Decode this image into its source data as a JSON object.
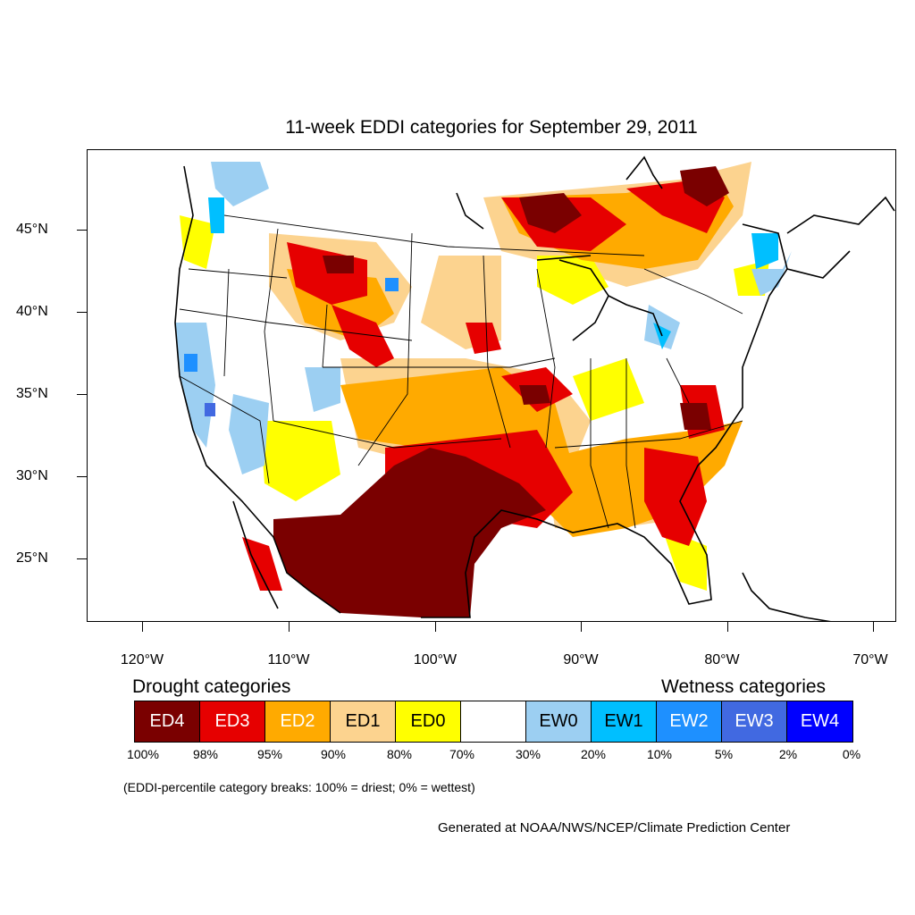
{
  "title": "11-week EDDI categories for September 29, 2011",
  "lat_labels": [
    "45°N",
    "40°N",
    "35°N",
    "30°N",
    "25°N"
  ],
  "lon_labels": [
    "120°W",
    "110°W",
    "100°W",
    "90°W",
    "80°W",
    "70°W"
  ],
  "legend": {
    "drought_heading": "Drought categories",
    "wetness_heading": "Wetness categories",
    "categories": [
      {
        "label": "ED4",
        "color": "#7a0000",
        "text_color": "#ffffff"
      },
      {
        "label": "ED3",
        "color": "#e60000",
        "text_color": "#ffffff"
      },
      {
        "label": "ED2",
        "color": "#ffaa00",
        "text_color": "#ffffff"
      },
      {
        "label": "ED1",
        "color": "#fcd38f",
        "text_color": "#000000"
      },
      {
        "label": "ED0",
        "color": "#ffff00",
        "text_color": "#000000"
      },
      {
        "label": "",
        "color": "#ffffff",
        "text_color": "#000000"
      },
      {
        "label": "EW0",
        "color": "#9ccff2",
        "text_color": "#000000"
      },
      {
        "label": "EW1",
        "color": "#00bfff",
        "text_color": "#000000"
      },
      {
        "label": "EW2",
        "color": "#1e90ff",
        "text_color": "#ffffff"
      },
      {
        "label": "EW3",
        "color": "#4169e1",
        "text_color": "#ffffff"
      },
      {
        "label": "EW4",
        "color": "#0000ff",
        "text_color": "#ffffff"
      }
    ],
    "percentiles": [
      "100%",
      "98%",
      "95%",
      "90%",
      "80%",
      "70%",
      "30%",
      "20%",
      "10%",
      "5%",
      "2%",
      "0%"
    ]
  },
  "note": "(EDDI-percentile category breaks: 100% = driest; 0% = wettest)",
  "credit": "Generated at NOAA/NWS/NCEP/Climate Prediction Center"
}
